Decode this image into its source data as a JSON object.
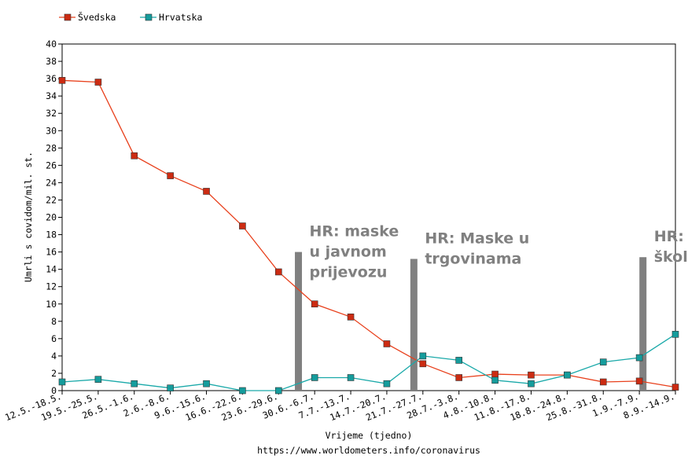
{
  "chart_data": {
    "type": "line",
    "title": "",
    "xlabel": "Vrijeme (tjedno)",
    "ylabel": "Umrli s covidom/mil. st.",
    "source": "https://www.worldometers.info/coronavirus",
    "ylim": [
      0,
      40
    ],
    "yticks": [
      0,
      2,
      4,
      6,
      8,
      10,
      12,
      14,
      16,
      18,
      20,
      22,
      24,
      26,
      28,
      30,
      32,
      34,
      36,
      38,
      40
    ],
    "grid": false,
    "legend_position": "top-left",
    "categories": [
      "12.5.-18.5.",
      "19.5.-25.5.",
      "26.5.-1.6.",
      "2.6.-8.6.",
      "9.6.-15.6.",
      "16.6.-22.6.",
      "23.6.-29.6.",
      "30.6.-6.7.",
      "7.7.-13.7.",
      "14.7.-20.7.",
      "21.7.-27.7.",
      "28.7.-3.8.",
      "4.8.-10.8.",
      "11.8.-17.8.",
      "18.8.-24.8.",
      "25.8.-31.8.",
      "1.9.-7.9.",
      "8.9.-14.9."
    ],
    "series": [
      {
        "name": "Švedska",
        "color": "#e8401c",
        "marker_color": "#cc2b12",
        "values": [
          35.8,
          35.6,
          27.1,
          24.8,
          23.0,
          19.0,
          13.7,
          10.0,
          8.5,
          5.4,
          3.1,
          1.5,
          1.9,
          1.8,
          1.8,
          1.0,
          1.1,
          0.4
        ]
      },
      {
        "name": "Hrvatska",
        "color": "#1aa9a9",
        "marker_color": "#159c9c",
        "values": [
          1.0,
          1.3,
          0.8,
          0.3,
          0.8,
          0.0,
          0.0,
          1.5,
          1.5,
          0.8,
          4.0,
          3.5,
          1.2,
          0.8,
          1.8,
          3.3,
          3.8,
          6.5
        ]
      }
    ],
    "annotations": [
      {
        "text": [
          "HR: maske",
          "u javnom",
          "prijevozu"
        ],
        "position_index": 6.55,
        "bar_top_value": 16.0
      },
      {
        "text": [
          "HR: Maske u",
          "trgovinama"
        ],
        "position_index": 9.75,
        "bar_top_value": 15.2
      },
      {
        "text": [
          "HR: maske u",
          "školi"
        ],
        "position_index": 16.1,
        "bar_top_value": 15.4
      }
    ],
    "annotation_color": "#808080"
  }
}
